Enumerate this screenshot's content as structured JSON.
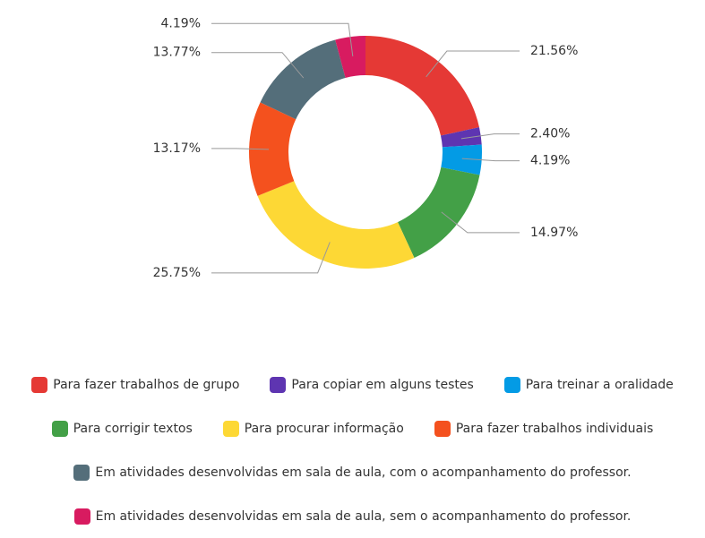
{
  "chart_data": {
    "type": "donut",
    "categories": [
      "Para fazer trabalhos de grupo",
      "Para copiar em alguns testes",
      "Para treinar a oralidade",
      "Para corrigir textos",
      "Para procurar informação",
      "Para fazer trabalhos individuais",
      "Em atividades desenvolvidas em sala de aula, com o acompanhamento do professor.",
      "Em atividades desenvolvidas em sala de aula, sem o acompanhamento do professor."
    ],
    "values": [
      21.56,
      2.4,
      4.19,
      14.97,
      25.75,
      13.17,
      13.77,
      4.19
    ],
    "value_labels": [
      "21.56%",
      "2.40%",
      "4.19%",
      "14.97%",
      "25.75%",
      "13.17%",
      "13.77%",
      "4.19%"
    ],
    "colors": [
      "#e53935",
      "#5e35b1",
      "#039be5",
      "#43a047",
      "#fdd835",
      "#f4511e",
      "#546e7a",
      "#d81b60"
    ],
    "legend": "bottom"
  }
}
